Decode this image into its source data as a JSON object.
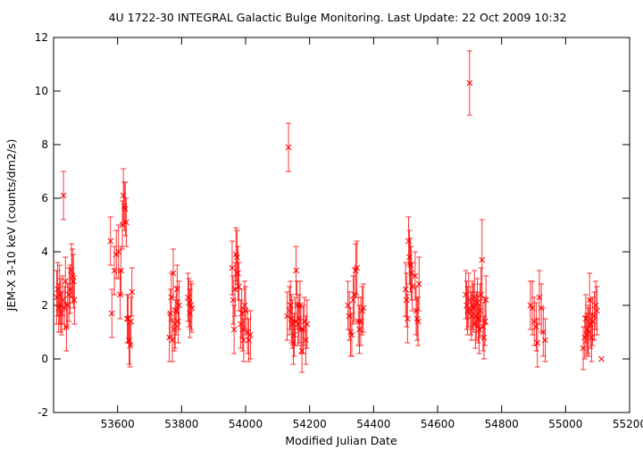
{
  "chart_data": {
    "type": "scatter",
    "title": "4U 1722-30   INTEGRAL Galactic Bulge Monitoring.  Last Update: 22 Oct 2009 10:32",
    "xlabel": "Modified Julian Date",
    "ylabel": "JEM-X 3-10 keV (counts/dm2/s)",
    "xlim": [
      53400,
      55200
    ],
    "ylim": [
      -2,
      12
    ],
    "xticks": [
      53600,
      53800,
      54000,
      54200,
      54400,
      54600,
      54800,
      55000,
      55200
    ],
    "yticks": [
      -2,
      0,
      2,
      4,
      6,
      8,
      10,
      12
    ],
    "grid": false,
    "marker": "x",
    "color": "#ff0000",
    "points": [
      [
        53410,
        2.3,
        1.0
      ],
      [
        53413,
        2.6,
        1.0
      ],
      [
        53416,
        1.9,
        0.9
      ],
      [
        53419,
        2.4,
        1.1
      ],
      [
        53422,
        2.0,
        1.0
      ],
      [
        53425,
        1.7,
        0.8
      ],
      [
        53428,
        2.2,
        0.9
      ],
      [
        53431,
        6.1,
        0.9
      ],
      [
        53434,
        1.9,
        0.8
      ],
      [
        53437,
        2.9,
        0.9
      ],
      [
        53440,
        1.2,
        0.9
      ],
      [
        53444,
        2.0,
        0.8
      ],
      [
        53448,
        2.4,
        1.0
      ],
      [
        53452,
        2.6,
        0.9
      ],
      [
        53456,
        3.3,
        1.0
      ],
      [
        53459,
        3.1,
        1.0
      ],
      [
        53462,
        2.9,
        1.0
      ],
      [
        53465,
        2.2,
        0.9
      ],
      [
        53578,
        4.4,
        0.9
      ],
      [
        53582,
        1.7,
        0.9
      ],
      [
        53590,
        3.3,
        0.9
      ],
      [
        53596,
        3.9,
        0.9
      ],
      [
        53603,
        4.0,
        1.0
      ],
      [
        53608,
        2.4,
        0.9
      ],
      [
        53611,
        3.3,
        0.9
      ],
      [
        53615,
        5.0,
        0.9
      ],
      [
        53618,
        6.1,
        1.0
      ],
      [
        53621,
        5.7,
        0.9
      ],
      [
        53624,
        5.6,
        1.0
      ],
      [
        53627,
        5.1,
        0.9
      ],
      [
        53630,
        1.5,
        0.9
      ],
      [
        53633,
        1.5,
        0.9
      ],
      [
        53636,
        0.7,
        0.9
      ],
      [
        53639,
        0.5,
        0.8
      ],
      [
        53642,
        1.4,
        0.9
      ],
      [
        53645,
        2.5,
        0.9
      ],
      [
        53762,
        0.8,
        0.9
      ],
      [
        53765,
        1.7,
        0.9
      ],
      [
        53768,
        2.3,
        0.9
      ],
      [
        53771,
        0.7,
        0.8
      ],
      [
        53774,
        3.2,
        0.9
      ],
      [
        53777,
        1.1,
        0.8
      ],
      [
        53780,
        1.3,
        0.9
      ],
      [
        53783,
        1.8,
        0.9
      ],
      [
        53786,
        2.6,
        0.9
      ],
      [
        53789,
        1.4,
        0.8
      ],
      [
        53792,
        2.0,
        0.9
      ],
      [
        53820,
        2.3,
        0.9
      ],
      [
        53823,
        2.1,
        0.9
      ],
      [
        53826,
        1.7,
        0.9
      ],
      [
        53829,
        2.0,
        0.9
      ],
      [
        53832,
        1.9,
        0.9
      ],
      [
        53958,
        3.4,
        1.0
      ],
      [
        53961,
        2.2,
        0.9
      ],
      [
        53964,
        1.1,
        0.9
      ],
      [
        53967,
        2.6,
        1.0
      ],
      [
        53970,
        3.9,
        1.0
      ],
      [
        53973,
        3.8,
        1.0
      ],
      [
        53976,
        3.2,
        1.0
      ],
      [
        53979,
        2.7,
        0.9
      ],
      [
        53985,
        1.3,
        0.9
      ],
      [
        53988,
        1.7,
        0.9
      ],
      [
        53991,
        1.1,
        0.8
      ],
      [
        53994,
        0.7,
        0.8
      ],
      [
        53997,
        2.0,
        0.9
      ],
      [
        54000,
        1.8,
        0.9
      ],
      [
        54006,
        1.0,
        0.8
      ],
      [
        54010,
        0.7,
        0.8
      ],
      [
        54015,
        0.9,
        0.9
      ],
      [
        54130,
        1.6,
        0.9
      ],
      [
        54134,
        7.9,
        0.9
      ],
      [
        54137,
        1.8,
        0.9
      ],
      [
        54140,
        2.0,
        0.9
      ],
      [
        54143,
        1.5,
        0.9
      ],
      [
        54146,
        1.3,
        0.9
      ],
      [
        54149,
        0.6,
        0.8
      ],
      [
        54152,
        0.9,
        0.8
      ],
      [
        54155,
        1.4,
        0.9
      ],
      [
        54158,
        3.3,
        0.9
      ],
      [
        54161,
        2.0,
        0.9
      ],
      [
        54164,
        1.3,
        0.8
      ],
      [
        54167,
        1.5,
        0.9
      ],
      [
        54170,
        2.0,
        0.9
      ],
      [
        54173,
        1.1,
        0.9
      ],
      [
        54176,
        0.3,
        0.8
      ],
      [
        54180,
        1.1,
        0.9
      ],
      [
        54184,
        1.4,
        0.9
      ],
      [
        54188,
        0.7,
        0.9
      ],
      [
        54192,
        1.3,
        0.9
      ],
      [
        54320,
        2.0,
        0.9
      ],
      [
        54324,
        1.6,
        0.9
      ],
      [
        54328,
        1.0,
        0.9
      ],
      [
        54332,
        0.9,
        0.8
      ],
      [
        54336,
        2.2,
        0.9
      ],
      [
        54340,
        2.4,
        1.0
      ],
      [
        54344,
        3.3,
        1.0
      ],
      [
        54348,
        3.4,
        1.0
      ],
      [
        54352,
        1.4,
        0.9
      ],
      [
        54356,
        1.1,
        0.9
      ],
      [
        54360,
        1.4,
        0.9
      ],
      [
        54364,
        1.8,
        0.9
      ],
      [
        54368,
        1.9,
        0.9
      ],
      [
        54500,
        2.6,
        1.0
      ],
      [
        54503,
        2.2,
        1.0
      ],
      [
        54506,
        1.5,
        0.9
      ],
      [
        54509,
        4.4,
        0.9
      ],
      [
        54512,
        3.8,
        1.0
      ],
      [
        54515,
        3.5,
        1.0
      ],
      [
        54518,
        3.2,
        1.0
      ],
      [
        54521,
        2.7,
        0.9
      ],
      [
        54530,
        3.1,
        0.9
      ],
      [
        54533,
        1.8,
        0.9
      ],
      [
        54536,
        1.5,
        0.8
      ],
      [
        54539,
        1.4,
        0.9
      ],
      [
        54542,
        2.8,
        1.0
      ],
      [
        54688,
        2.4,
        0.9
      ],
      [
        54691,
        2.0,
        0.9
      ],
      [
        54694,
        1.8,
        0.9
      ],
      [
        54697,
        2.2,
        1.0
      ],
      [
        54700,
        10.3,
        1.2
      ],
      [
        54703,
        1.8,
        0.9
      ],
      [
        54706,
        1.6,
        0.9
      ],
      [
        54709,
        2.0,
        0.9
      ],
      [
        54712,
        1.9,
        0.9
      ],
      [
        54715,
        2.3,
        1.0
      ],
      [
        54718,
        1.3,
        0.9
      ],
      [
        54721,
        1.6,
        0.9
      ],
      [
        54724,
        2.1,
        0.9
      ],
      [
        54727,
        1.5,
        0.9
      ],
      [
        54730,
        1.1,
        0.9
      ],
      [
        54733,
        1.8,
        1.0
      ],
      [
        54736,
        2.4,
        1.0
      ],
      [
        54739,
        3.7,
        1.5
      ],
      [
        54742,
        1.2,
        0.9
      ],
      [
        54745,
        0.8,
        0.8
      ],
      [
        54748,
        1.4,
        0.9
      ],
      [
        54751,
        2.2,
        0.9
      ],
      [
        54890,
        2.0,
        0.9
      ],
      [
        54896,
        1.9,
        1.0
      ],
      [
        54902,
        1.4,
        0.9
      ],
      [
        54908,
        1.2,
        0.9
      ],
      [
        54912,
        0.6,
        0.9
      ],
      [
        54918,
        2.3,
        1.0
      ],
      [
        54924,
        1.9,
        0.9
      ],
      [
        54930,
        1.0,
        0.9
      ],
      [
        54936,
        0.7,
        0.8
      ],
      [
        55055,
        0.4,
        0.8
      ],
      [
        55060,
        0.8,
        0.8
      ],
      [
        55063,
        1.5,
        0.9
      ],
      [
        55066,
        0.9,
        0.8
      ],
      [
        55069,
        1.1,
        0.9
      ],
      [
        55072,
        1.0,
        0.9
      ],
      [
        55075,
        2.2,
        1.0
      ],
      [
        55078,
        1.3,
        0.9
      ],
      [
        55081,
        0.8,
        0.9
      ],
      [
        55084,
        1.4,
        0.9
      ],
      [
        55090,
        1.6,
        0.9
      ],
      [
        55094,
        2.0,
        0.9
      ],
      [
        55098,
        1.8,
        0.9
      ],
      [
        55112,
        0.0,
        0.0
      ]
    ]
  }
}
